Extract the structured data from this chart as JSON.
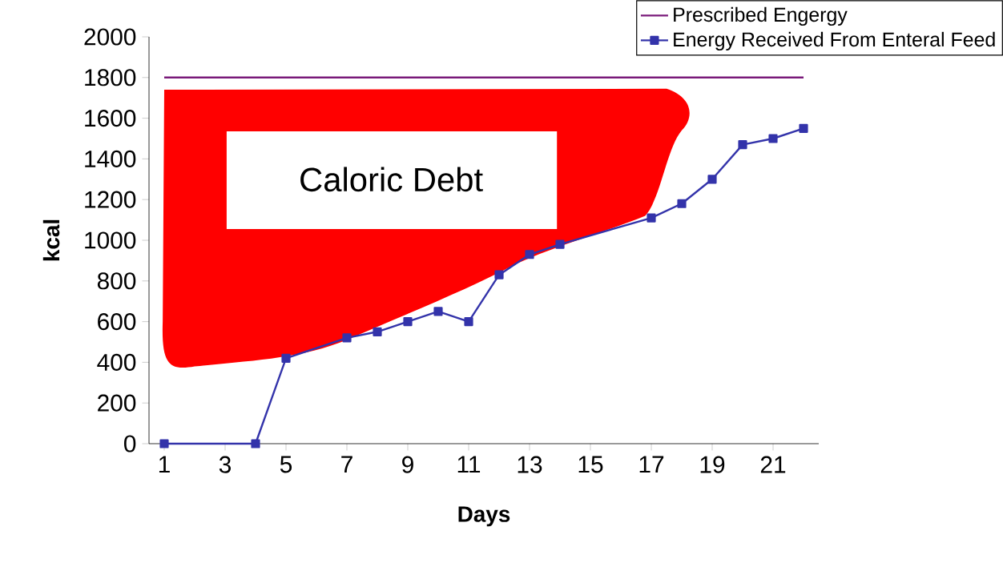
{
  "chart_data": {
    "type": "line",
    "xlabel": "Days",
    "ylabel": "kcal",
    "xlim": [
      0.5,
      22.5
    ],
    "xticks": [
      1,
      3,
      5,
      7,
      9,
      11,
      13,
      15,
      17,
      19,
      21
    ],
    "ylim": [
      0,
      2000
    ],
    "yticks": [
      0,
      200,
      400,
      600,
      800,
      1000,
      1200,
      1400,
      1600,
      1800,
      2000
    ],
    "legend": "top right",
    "annotations": [
      "Caloric Debt"
    ],
    "series": [
      {
        "name": "Prescribed Engergy",
        "color": "#7a1a7a",
        "marker": "none",
        "x": [
          1,
          22
        ],
        "values": [
          1800,
          1800
        ]
      },
      {
        "name": "Energy Received From Enteral Feed",
        "color": "#3333aa",
        "marker": "square",
        "x": [
          1,
          4,
          5,
          6,
          7,
          8,
          9,
          10,
          11,
          12,
          13,
          14,
          15,
          16,
          17,
          18,
          19,
          20,
          21,
          22
        ],
        "values": [
          0,
          0,
          420,
          null,
          520,
          550,
          600,
          650,
          600,
          830,
          930,
          980,
          null,
          null,
          1110,
          1180,
          1300,
          1470,
          1500,
          1550
        ]
      }
    ]
  }
}
